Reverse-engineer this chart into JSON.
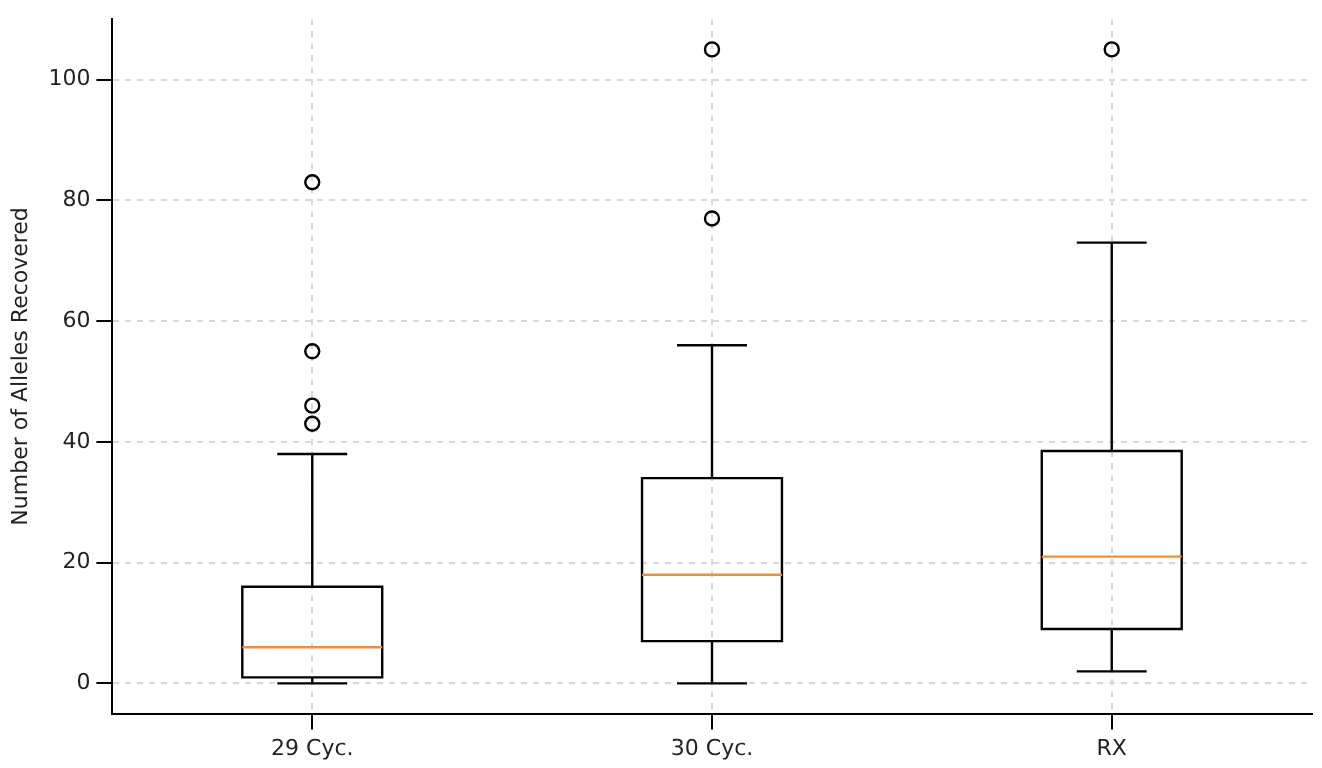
{
  "chart_data": {
    "type": "box",
    "ylabel": "Number of Alleles Recovered",
    "categories": [
      "29 Cyc.",
      "30 Cyc.",
      "RX"
    ],
    "boxes": [
      {
        "low": 0,
        "q1": 1,
        "median": 6,
        "q3": 16,
        "high": 38,
        "outliers": [
          43,
          46,
          55,
          83
        ]
      },
      {
        "low": 0,
        "q1": 7,
        "median": 18,
        "q3": 34,
        "high": 56,
        "outliers": [
          77,
          105
        ]
      },
      {
        "low": 2,
        "q1": 9,
        "median": 21,
        "q3": 38.5,
        "high": 73,
        "outliers": [
          105
        ]
      }
    ],
    "color": "#000000",
    "ylim": [
      -5,
      110
    ],
    "yticks": [
      0,
      20,
      40,
      60,
      80,
      100
    ],
    "grid": true,
    "marker": "circle"
  }
}
